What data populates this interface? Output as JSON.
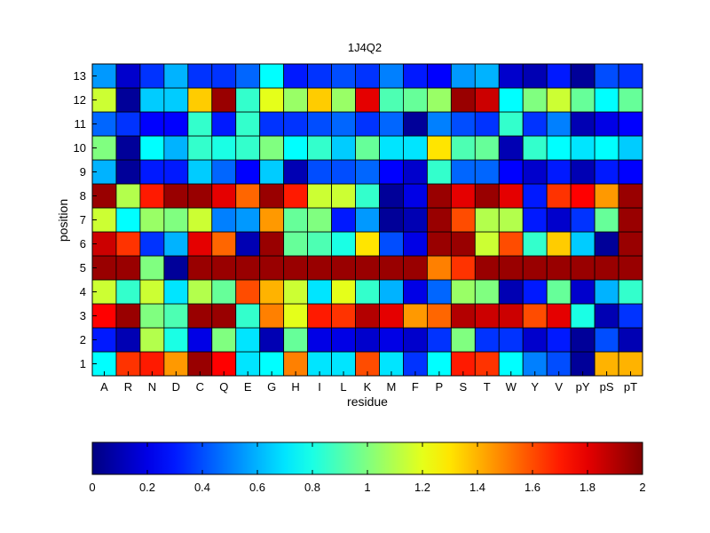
{
  "chart_data": {
    "type": "heatmap",
    "title": "1J4Q2",
    "xlabel": "residue",
    "ylabel": "position",
    "x_categories": [
      "A",
      "R",
      "N",
      "D",
      "C",
      "Q",
      "E",
      "G",
      "H",
      "I",
      "L",
      "K",
      "M",
      "F",
      "P",
      "S",
      "T",
      "W",
      "Y",
      "V",
      "pY",
      "pS",
      "pT"
    ],
    "y_categories": [
      "1",
      "2",
      "3",
      "4",
      "5",
      "6",
      "7",
      "8",
      "9",
      "10",
      "11",
      "12",
      "13"
    ],
    "values": [
      [
        0.75,
        1.65,
        1.7,
        1.45,
        1.95,
        1.75,
        0.7,
        0.75,
        1.5,
        0.7,
        0.7,
        1.6,
        0.7,
        0.35,
        0.75,
        1.7,
        1.65,
        0.75,
        0.5,
        0.4,
        0.05,
        1.4,
        1.4
      ],
      [
        0.3,
        0.1,
        1.1,
        0.8,
        0.2,
        1.0,
        0.7,
        0.1,
        0.95,
        0.2,
        0.2,
        0.15,
        0.2,
        0.15,
        0.35,
        1.0,
        0.35,
        0.35,
        0.15,
        0.3,
        0.05,
        0.4,
        0.1
      ],
      [
        1.75,
        1.95,
        1.0,
        0.9,
        1.95,
        1.95,
        0.85,
        1.5,
        1.2,
        1.7,
        1.65,
        1.9,
        1.8,
        1.45,
        1.55,
        1.9,
        1.85,
        1.85,
        1.6,
        1.8,
        0.8,
        0.1,
        0.35
      ],
      [
        1.15,
        0.85,
        1.15,
        0.7,
        1.1,
        0.95,
        1.6,
        1.4,
        1.15,
        0.7,
        1.2,
        0.85,
        0.6,
        0.2,
        0.45,
        1.05,
        1.0,
        0.1,
        0.3,
        0.95,
        0.15,
        0.6,
        0.85
      ],
      [
        1.95,
        1.95,
        1.0,
        0.05,
        1.95,
        1.95,
        1.95,
        1.95,
        1.95,
        1.95,
        1.95,
        1.95,
        1.95,
        1.95,
        1.5,
        1.65,
        1.95,
        1.95,
        1.95,
        1.95,
        1.95,
        1.95,
        1.95
      ],
      [
        1.85,
        1.65,
        0.35,
        0.6,
        1.8,
        1.55,
        0.1,
        1.95,
        0.95,
        0.9,
        0.8,
        1.3,
        0.4,
        0.2,
        1.95,
        1.95,
        1.15,
        1.6,
        0.85,
        1.35,
        0.65,
        0.05,
        1.95
      ],
      [
        1.15,
        0.75,
        1.05,
        1.0,
        1.15,
        0.5,
        0.55,
        1.45,
        0.95,
        1.0,
        0.3,
        0.55,
        0.05,
        0.1,
        1.95,
        1.6,
        1.1,
        1.1,
        0.3,
        0.15,
        0.35,
        0.95,
        1.95
      ],
      [
        1.95,
        1.1,
        1.7,
        1.95,
        1.95,
        1.8,
        1.55,
        1.95,
        1.7,
        1.15,
        1.15,
        0.85,
        0.05,
        0.2,
        1.95,
        1.8,
        1.95,
        1.8,
        0.3,
        1.65,
        1.75,
        1.45,
        1.95
      ],
      [
        0.6,
        0.05,
        0.3,
        0.3,
        0.65,
        0.45,
        0.25,
        0.65,
        0.1,
        0.4,
        0.4,
        0.45,
        0.25,
        0.15,
        0.85,
        0.45,
        0.45,
        0.25,
        0.15,
        0.3,
        0.1,
        0.3,
        0.25
      ],
      [
        1.0,
        0.05,
        0.75,
        0.6,
        0.85,
        0.8,
        0.85,
        1.0,
        0.75,
        0.85,
        0.65,
        0.95,
        0.7,
        0.7,
        1.3,
        0.9,
        0.95,
        0.1,
        0.85,
        0.75,
        0.7,
        0.75,
        0.65
      ],
      [
        0.45,
        0.35,
        0.25,
        0.25,
        0.85,
        0.3,
        0.85,
        0.35,
        0.35,
        0.4,
        0.45,
        0.35,
        0.45,
        0.05,
        0.5,
        0.4,
        0.35,
        0.85,
        0.35,
        0.5,
        0.1,
        0.2,
        0.25
      ],
      [
        1.15,
        0.05,
        0.65,
        0.65,
        1.35,
        1.95,
        0.85,
        1.2,
        1.05,
        1.35,
        1.05,
        1.8,
        0.9,
        0.95,
        1.05,
        1.95,
        1.85,
        0.75,
        1.0,
        1.15,
        0.95,
        0.75,
        0.95
      ],
      [
        0.55,
        0.15,
        0.35,
        0.6,
        0.35,
        0.35,
        0.45,
        0.75,
        0.3,
        0.35,
        0.4,
        0.35,
        0.5,
        0.3,
        0.25,
        0.55,
        0.6,
        0.15,
        0.1,
        0.3,
        0.05,
        0.4,
        0.35
      ]
    ],
    "value_range": [
      0,
      2
    ],
    "colormap": "jet",
    "colorbar": {
      "ticks": [
        0,
        0.2,
        0.4,
        0.6,
        0.8,
        1,
        1.2,
        1.4,
        1.6,
        1.8,
        2
      ],
      "tick_labels": [
        "0",
        "0.2",
        "0.4",
        "0.6",
        "0.8",
        "1",
        "1.2",
        "1.4",
        "1.6",
        "1.8",
        "2"
      ],
      "placement": "bottom"
    }
  }
}
